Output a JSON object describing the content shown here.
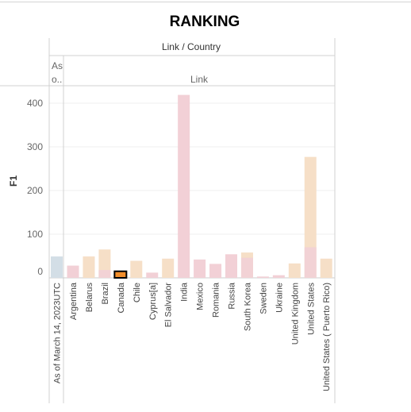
{
  "chart_data": {
    "type": "bar",
    "title": "RANKING",
    "header": "Link / Country",
    "panel_labels": [
      "As o..",
      "Link"
    ],
    "ylabel": "F1",
    "ylim": [
      0,
      430
    ],
    "yticks": [
      0,
      100,
      200,
      300,
      400
    ],
    "grid": true,
    "legend": "none",
    "colors": {
      "title": "#c291b8",
      "pink": "#f2d0d6",
      "peach": "#f6dfc7",
      "blue": "#d3dee6",
      "highlight": "#f28e2b",
      "highlight_border": "#000000"
    },
    "panels": [
      {
        "label": "As o..",
        "categories": [
          "As of March 14, 2023UTC"
        ],
        "bars": [
          {
            "value": 49,
            "color": "blue"
          }
        ]
      },
      {
        "label": "Link",
        "categories": [
          "Argentina",
          "Belarus",
          "Brazil",
          "Canada",
          "Chile",
          "Cyprus[a]",
          "El Salvador",
          "India",
          "Mexico",
          "Romania",
          "Russia",
          "South Korea",
          "Sweden",
          "Ukraine",
          "United Kingdom",
          "United States",
          "United States ( Puerto Rico)"
        ],
        "bars": [
          {
            "value": 28,
            "color": "pink"
          },
          {
            "value": 49,
            "color": "peach"
          },
          {
            "value": 65,
            "color": "peach",
            "overlay": 18
          },
          {
            "value": 15,
            "color": "highlight"
          },
          {
            "value": 39,
            "color": "peach"
          },
          {
            "value": 12,
            "color": "pink"
          },
          {
            "value": 44,
            "color": "peach"
          },
          {
            "value": 419,
            "color": "pink"
          },
          {
            "value": 42,
            "color": "pink"
          },
          {
            "value": 32,
            "color": "pink"
          },
          {
            "value": 54,
            "color": "pink"
          },
          {
            "value": 58,
            "color": "peach",
            "overlay": 46
          },
          {
            "value": 3,
            "color": "pink"
          },
          {
            "value": 6,
            "color": "pink"
          },
          {
            "value": 33,
            "color": "peach"
          },
          {
            "value": 277,
            "color": "peach",
            "overlay": 70
          },
          {
            "value": 44,
            "color": "peach"
          }
        ]
      }
    ]
  }
}
